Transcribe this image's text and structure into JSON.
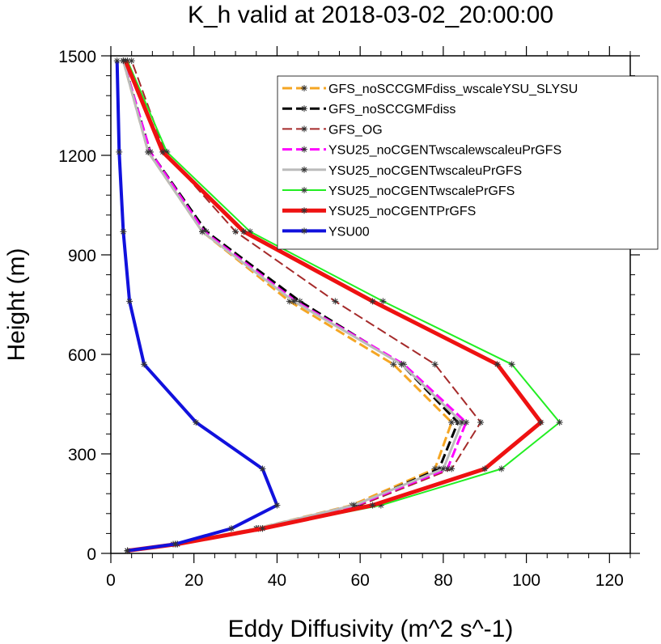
{
  "chart_data": {
    "type": "line",
    "title": "K_h valid at 2018-03-02_20:00:00",
    "xlabel": "Eddy Diffusivity (m^2 s^-1)",
    "ylabel": "Height (m)",
    "xlim": [
      0,
      120
    ],
    "ylim": [
      0,
      1500
    ],
    "xticks": [
      0,
      20,
      40,
      60,
      80,
      100,
      120
    ],
    "yticks": [
      0,
      300,
      600,
      900,
      1200,
      1500
    ],
    "legend_position": "top-right",
    "grid": false,
    "heights": [
      8,
      28,
      75,
      145,
      255,
      395,
      570,
      760,
      970,
      1210,
      1485
    ],
    "series": [
      {
        "name": "GFS_noSCCGMFdiss_wscaleYSU_SLYSU",
        "color": "#f5a623",
        "dash": "dashed",
        "width": 3,
        "values": [
          4,
          15,
          35,
          58,
          78,
          82,
          68,
          43,
          22,
          9,
          3
        ]
      },
      {
        "name": "GFS_noSCCGMFdiss",
        "color": "#000000",
        "dash": "dashed",
        "width": 3,
        "values": [
          4,
          15.5,
          35.5,
          59,
          79,
          83.5,
          70,
          45.5,
          23,
          9.5,
          3
        ]
      },
      {
        "name": "GFS_OG",
        "color": "#a52a2a",
        "dash": "dashed",
        "width": 2,
        "values": [
          4,
          16,
          36,
          60,
          82,
          89,
          78,
          54,
          30,
          13,
          5
        ]
      },
      {
        "name": "YSU25_noCGENTwscalewscaleuPrGFS",
        "color": "#ff00ff",
        "dash": "dashed",
        "width": 3,
        "values": [
          4,
          16,
          35.5,
          59,
          81,
          85.5,
          70.5,
          44.5,
          22.5,
          9.5,
          3
        ]
      },
      {
        "name": "YSU25_noCGENTwscaleuPrGFS",
        "color": "#bbbbbb",
        "dash": "solid",
        "width": 3,
        "values": [
          4,
          15.5,
          35,
          58.5,
          80,
          84.5,
          70,
          44,
          22,
          9,
          3
        ]
      },
      {
        "name": "YSU25_noCGENTwscalePrGFS",
        "color": "#22ee22",
        "dash": "solid",
        "width": 2,
        "values": [
          4,
          16,
          36.5,
          65,
          94,
          108,
          96.5,
          65.5,
          33.5,
          13.5,
          4
        ]
      },
      {
        "name": "YSU25_noCGENTPrGFS",
        "color": "#ee1111",
        "dash": "solid",
        "width": 5,
        "values": [
          4,
          16,
          36.5,
          63,
          90,
          103.5,
          93,
          63,
          32,
          12.5,
          3.5
        ]
      },
      {
        "name": "YSU00",
        "color": "#1111dd",
        "dash": "solid",
        "width": 4,
        "values": [
          4,
          15.5,
          29,
          40,
          36.5,
          20.5,
          8,
          4.5,
          3,
          2,
          1.5
        ]
      }
    ]
  }
}
